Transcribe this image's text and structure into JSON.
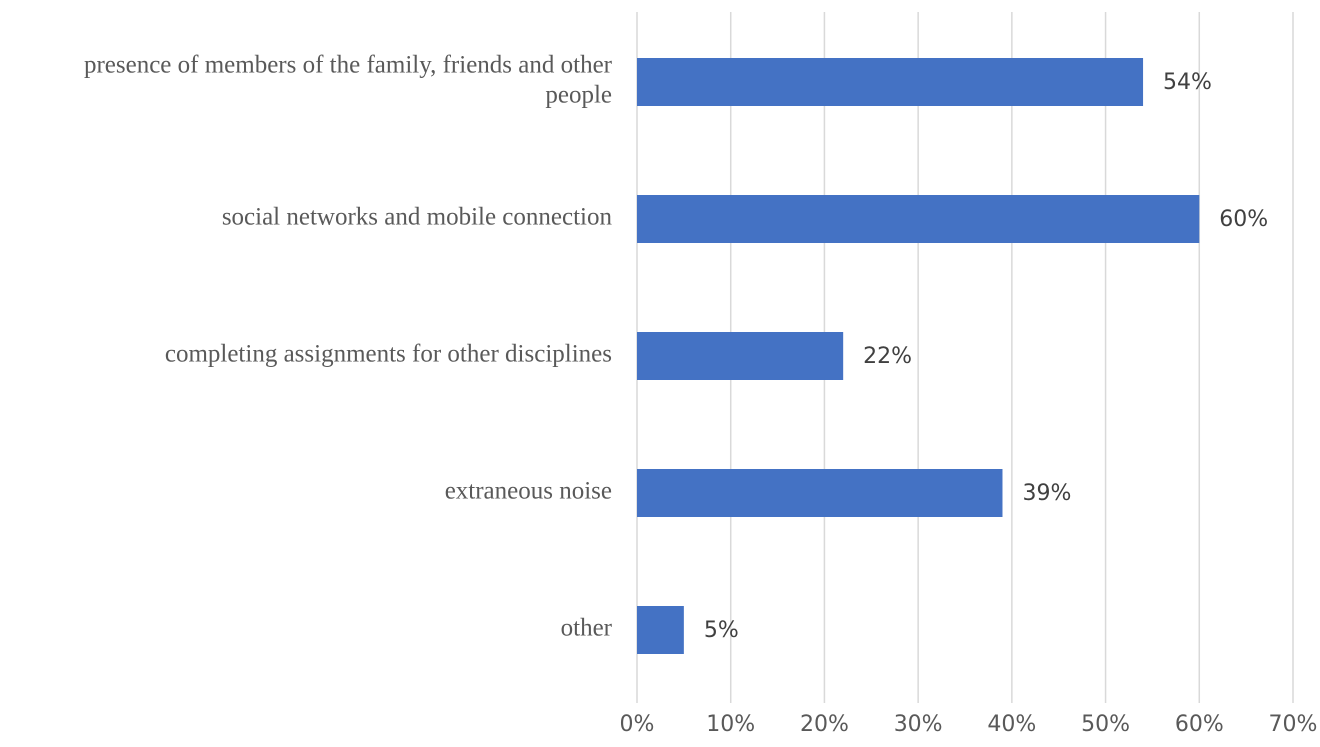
{
  "chart_data": {
    "type": "bar",
    "orientation": "horizontal",
    "title": "",
    "xlabel": "",
    "ylabel": "",
    "categories": [
      [
        "presence of members of the family, friends and other",
        "people"
      ],
      [
        "social networks and mobile connection"
      ],
      [
        "completing assignments for other disciplines"
      ],
      [
        "extraneous noise"
      ],
      [
        "other"
      ]
    ],
    "values": [
      54,
      60,
      22,
      39,
      5
    ],
    "data_labels": [
      "54%",
      "60%",
      "22%",
      "39%",
      "5%"
    ],
    "xlim": [
      0,
      70
    ],
    "x_ticks": [
      0,
      10,
      20,
      30,
      40,
      50,
      60,
      70
    ],
    "x_tick_labels": [
      "0%",
      "10%",
      "20%",
      "30%",
      "40%",
      "50%",
      "60%",
      "70%"
    ],
    "bar_color": "#4472C4",
    "grid": "vertical",
    "legend": "none"
  }
}
